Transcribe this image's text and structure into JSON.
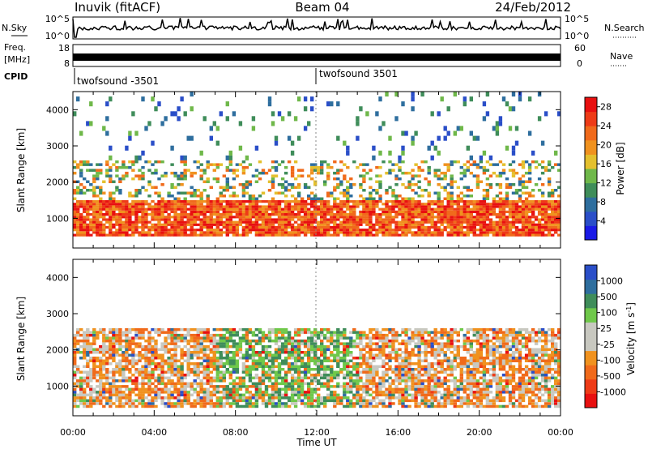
{
  "header": {
    "station": "Inuvik (fitACF)",
    "beam": "Beam 04",
    "date": "24/Feb/2012"
  },
  "aux_panels": {
    "nsky_label": "N.Sky",
    "nsky_ticks": [
      "10^5",
      "10^0"
    ],
    "nsearch_label": "N.Search",
    "nsearch_ticks": [
      "10^5",
      "10^0"
    ],
    "freq_label_line1": "Freq.",
    "freq_label_line2": "[MHz]",
    "freq_ticks": [
      "18",
      "8"
    ],
    "nave_label": "Nave",
    "nave_ticks": [
      "60",
      "0"
    ],
    "cpid_label": "CPID",
    "cpid_segments": [
      {
        "label": "twofsound -3501",
        "start_hour": 0
      },
      {
        "label": "twofsound 3501",
        "start_hour": 12
      }
    ]
  },
  "chart_data": [
    {
      "type": "heatmap",
      "panel": "power",
      "title": "",
      "xlabel": "Time UT",
      "ylabel": "Slant Range [km]",
      "xlim_hours": [
        0,
        24
      ],
      "x_ticks": [
        "00:00",
        "04:00",
        "08:00",
        "12:00",
        "16:00",
        "20:00",
        "00:00"
      ],
      "ylim_km": [
        180,
        4500
      ],
      "y_ticks": [
        1000,
        2000,
        3000,
        4000
      ],
      "colorbar_label": "Power [dB]",
      "colorbar_ticks": [
        4,
        8,
        12,
        16,
        20,
        24,
        28
      ],
      "colorbar_range": [
        0,
        30
      ],
      "colors": [
        "#1a1ae6",
        "#2a4ec8",
        "#2e6e9e",
        "#3f8d5a",
        "#6fb84a",
        "#e4c02e",
        "#f0921f",
        "#f06a1b",
        "#ee3b17",
        "#e81010"
      ],
      "echo_regions": [
        {
          "t_start": 0.0,
          "t_end": 24.0,
          "range_low": 500,
          "range_high": 1500,
          "level": "high"
        },
        {
          "t_start": 0.0,
          "t_end": 24.0,
          "range_low": 1500,
          "range_high": 2600,
          "level": "medium"
        },
        {
          "t_start": 0.0,
          "t_end": 24.0,
          "range_low": 2600,
          "range_high": 4500,
          "level": "low"
        }
      ]
    },
    {
      "type": "heatmap",
      "panel": "velocity",
      "title": "",
      "xlabel": "Time UT",
      "ylabel": "Slant Range [km]",
      "xlim_hours": [
        0,
        24
      ],
      "x_ticks": [
        "00:00",
        "04:00",
        "08:00",
        "12:00",
        "16:00",
        "20:00",
        "00:00"
      ],
      "ylim_km": [
        180,
        4500
      ],
      "y_ticks": [
        1000,
        2000,
        3000,
        4000
      ],
      "colorbar_label": "Velocity [m s^-1]",
      "colorbar_ticks": [
        "1000",
        "500",
        "100",
        "25",
        "-25",
        "-100",
        "-500",
        "-1000"
      ],
      "colors": [
        "#e81010",
        "#ee3b17",
        "#f06a1b",
        "#f0921f",
        "#c8c8c0",
        "#c8c8c0",
        "#6fc84a",
        "#3f8d5a",
        "#2e6e9e",
        "#2a4ec8"
      ],
      "echo_regions": [
        {
          "t_start": 0.0,
          "t_end": 24.0,
          "range_low": 400,
          "range_high": 1500,
          "level": "mixed"
        },
        {
          "t_start": 0.0,
          "t_end": 24.0,
          "range_low": 1500,
          "range_high": 2600,
          "level": "mixed"
        }
      ]
    }
  ]
}
